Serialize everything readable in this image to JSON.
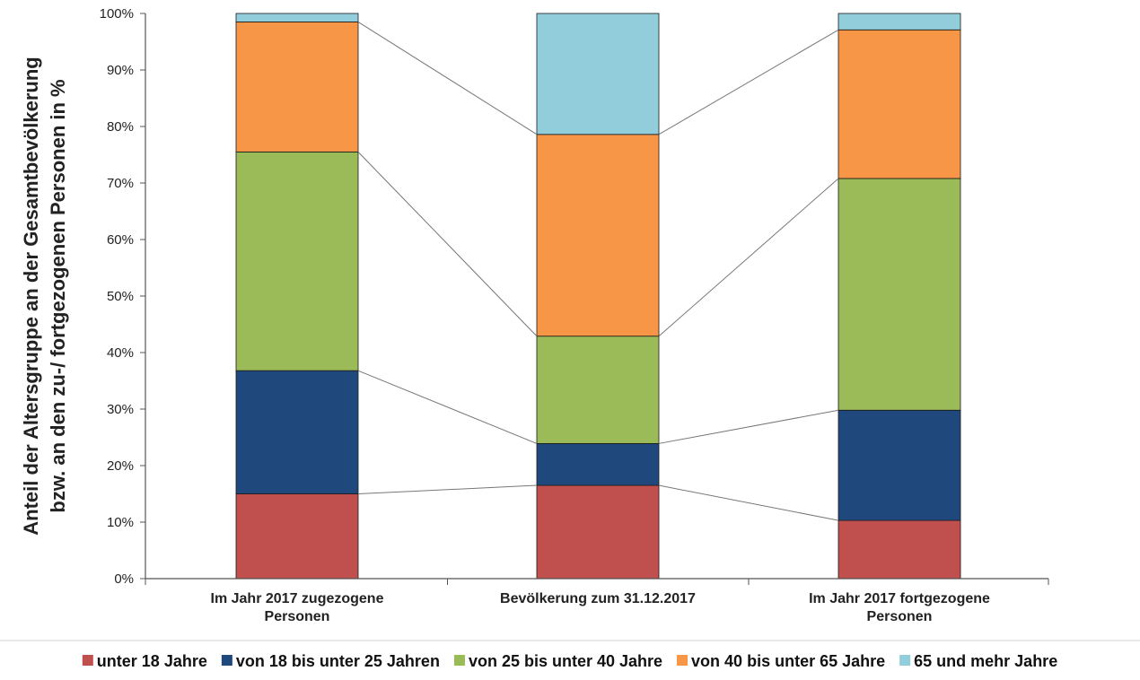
{
  "chart_data": {
    "type": "bar",
    "stacked": true,
    "percent_stacked": true,
    "categories": [
      [
        "Im Jahr 2017 zugezogene",
        "Personen"
      ],
      [
        "Bevölkerung zum 31.12.2017"
      ],
      [
        "Im Jahr 2017 fortgezogene",
        "Personen"
      ]
    ],
    "series": [
      {
        "name": "unter 18 Jahre",
        "color": "#C0504D",
        "values": [
          15.0,
          16.5,
          10.3
        ]
      },
      {
        "name": "von 18 bis unter 25 Jahren",
        "color": "#1F497D",
        "values": [
          21.8,
          7.4,
          19.5
        ]
      },
      {
        "name": "von 25 bis unter 40 Jahre",
        "color": "#9BBB59",
        "values": [
          38.7,
          19.0,
          41.0
        ]
      },
      {
        "name": "von 40 bis unter 65 Jahre",
        "color": "#F79646",
        "values": [
          23.0,
          35.7,
          26.3
        ]
      },
      {
        "name": "65 und mehr Jahre",
        "color": "#92CDDC",
        "values": [
          1.5,
          21.4,
          2.9
        ]
      }
    ],
    "ylabel": [
      "Anteil der Altersgruppe an der Gesamtbevölkerung",
      "bzw. an den zu-/ fortgezogenen Personen in %"
    ],
    "ylim": [
      0,
      100
    ],
    "yticks": [
      "0%",
      "10%",
      "20%",
      "30%",
      "40%",
      "50%",
      "60%",
      "70%",
      "80%",
      "90%",
      "100%"
    ],
    "connector_lines": true,
    "grid": false,
    "legend_position": "bottom"
  }
}
